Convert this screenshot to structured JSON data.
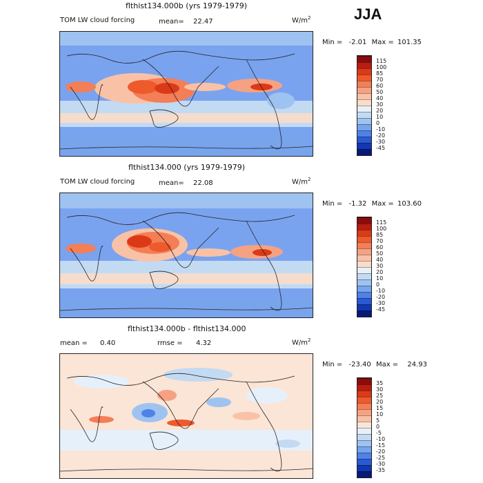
{
  "season": "JJA",
  "panels": [
    {
      "title": "flthist134.000b (yrs 1979-1979)",
      "left_text": "TOM LW cloud forcing",
      "mean_label": "mean=",
      "mean_value": "22.47",
      "units": "W/m",
      "units_sup": "2",
      "min_label": "Min =",
      "min_value": "-2.01",
      "max_label": "Max =",
      "max_value": "101.35",
      "background": "#7aa3ef",
      "colorbar_labels": [
        "115",
        "100",
        "85",
        "70",
        "60",
        "50",
        "40",
        "30",
        "20",
        "10",
        "0",
        "-10",
        "-20",
        "-30",
        "-45"
      ],
      "colorbar_colors": [
        "#8b0c0c",
        "#b81d10",
        "#dc3a17",
        "#ee5a2c",
        "#f47e55",
        "#f7a183",
        "#f9c2a7",
        "#fbdcc8",
        "#e8f0f6",
        "#c3daf3",
        "#9ec3f0",
        "#78a4ec",
        "#4f82e6",
        "#2a5ad3",
        "#1237b0",
        "#061a7a"
      ]
    },
    {
      "title": "flthist134.000 (yrs 1979-1979)",
      "left_text": "TOM LW cloud forcing",
      "mean_label": "mean=",
      "mean_value": "22.08",
      "units": "W/m",
      "units_sup": "2",
      "min_label": "Min =",
      "min_value": "-1.32",
      "max_label": "Max =",
      "max_value": "103.60",
      "background": "#7aa3ef",
      "colorbar_labels": [
        "115",
        "100",
        "85",
        "70",
        "60",
        "50",
        "40",
        "30",
        "20",
        "10",
        "0",
        "-10",
        "-20",
        "-30",
        "-45"
      ],
      "colorbar_colors": [
        "#8b0c0c",
        "#b81d10",
        "#dc3a17",
        "#ee5a2c",
        "#f47e55",
        "#f7a183",
        "#f9c2a7",
        "#fbdcc8",
        "#e8f0f6",
        "#c3daf3",
        "#9ec3f0",
        "#78a4ec",
        "#4f82e6",
        "#2a5ad3",
        "#1237b0",
        "#061a7a"
      ]
    },
    {
      "title": "flthist134.000b - flthist134.000",
      "left_text": "mean =",
      "left_value": "0.40",
      "rmse_label": "rmse =",
      "rmse_value": "4.32",
      "units": "W/m",
      "units_sup": "2",
      "min_label": "Min =",
      "min_value": "-23.40",
      "max_label": "Max =",
      "max_value": "24.93",
      "background": "#fbe5d6",
      "colorbar_labels": [
        "35",
        "30",
        "25",
        "20",
        "15",
        "10",
        "5",
        "0",
        "-5",
        "-10",
        "-15",
        "-20",
        "-25",
        "-30",
        "-35"
      ],
      "colorbar_colors": [
        "#8b0c0c",
        "#b81d10",
        "#dc3a17",
        "#ee5a2c",
        "#f47e55",
        "#f7a183",
        "#f9c2a7",
        "#fbe5d6",
        "#e6f0fb",
        "#c3daf3",
        "#9ec3f0",
        "#78a4ec",
        "#4f82e6",
        "#2a5ad3",
        "#1237b0",
        "#061a7a"
      ]
    }
  ],
  "chart_data": [
    {
      "type": "heatmap",
      "title": "flthist134.000b (yrs 1979-1979)",
      "variable": "TOM LW cloud forcing",
      "units": "W/m2",
      "mean": 22.47,
      "min": -2.01,
      "max": 101.35,
      "levels": [
        -45,
        -30,
        -20,
        -10,
        0,
        10,
        20,
        30,
        40,
        50,
        60,
        70,
        85,
        100,
        115
      ]
    },
    {
      "type": "heatmap",
      "title": "flthist134.000 (yrs 1979-1979)",
      "variable": "TOM LW cloud forcing",
      "units": "W/m2",
      "mean": 22.08,
      "min": -1.32,
      "max": 103.6,
      "levels": [
        -45,
        -30,
        -20,
        -10,
        0,
        10,
        20,
        30,
        40,
        50,
        60,
        70,
        85,
        100,
        115
      ]
    },
    {
      "type": "heatmap",
      "title": "flthist134.000b - flthist134.000",
      "units": "W/m2",
      "mean": 0.4,
      "rmse": 4.32,
      "min": -23.4,
      "max": 24.93,
      "levels": [
        -35,
        -30,
        -25,
        -20,
        -15,
        -10,
        -5,
        0,
        5,
        10,
        15,
        20,
        25,
        30,
        35
      ]
    }
  ]
}
